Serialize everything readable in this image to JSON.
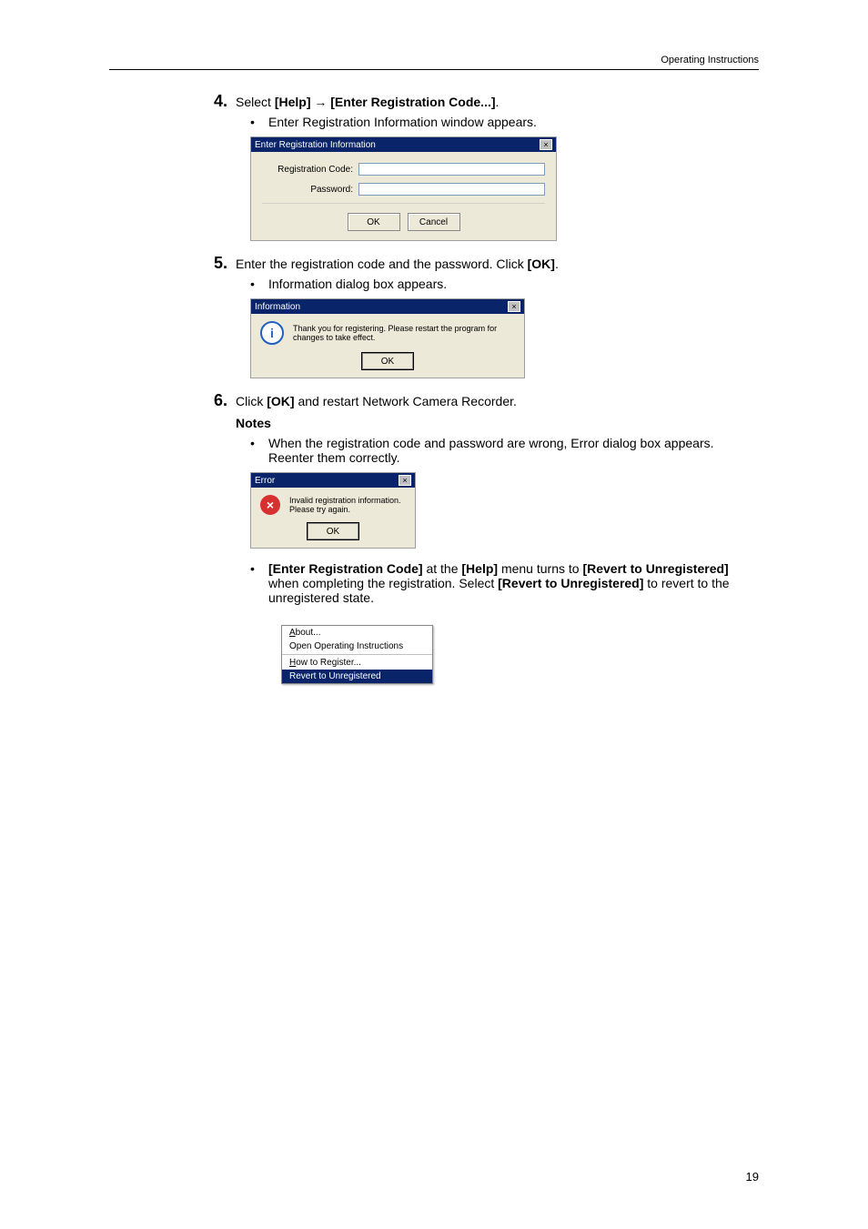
{
  "header": {
    "title": "Operating Instructions"
  },
  "step4": {
    "num": "4.",
    "pre": "Select ",
    "help": "[Help]",
    "arrow": " → ",
    "code": "[Enter Registration Code...]",
    "post": ".",
    "bullet": "Enter Registration Information window appears."
  },
  "dlg_reg": {
    "title": "Enter Registration Information",
    "label_code": "Registration Code:",
    "label_pass": "Password:",
    "btn_ok": "OK",
    "btn_cancel": "Cancel",
    "close_x": "×"
  },
  "step5": {
    "num": "5.",
    "text_pre": "Enter the registration code and the password. Click ",
    "ok": "[OK]",
    "post": ".",
    "bullet": "Information dialog box appears."
  },
  "dlg_info": {
    "title": "Information",
    "icon": "i",
    "text": "Thank you for registering. Please restart the program for changes to take effect.",
    "btn_ok": "OK",
    "close_x": "×"
  },
  "step6": {
    "num": "6.",
    "pre": "Click ",
    "ok": "[OK]",
    "post": " and restart Network Camera Recorder."
  },
  "notes": {
    "heading": "Notes"
  },
  "note1": {
    "text": "When the registration code and password are wrong, Error dialog box appears. Reenter them correctly."
  },
  "dlg_err": {
    "title": "Error",
    "icon": "×",
    "text": "Invalid registration information. Please try again.",
    "btn_ok": "OK",
    "close_x": "×"
  },
  "note2": {
    "p1": "[Enter Registration Code]",
    "p2": " at the ",
    "p3": "[Help]",
    "p4": " menu turns to ",
    "p5": "[Revert to Unregistered]",
    "p6": " when completing the registration. Select ",
    "p7": "[Revert to Unregistered]",
    "p8": " to revert to the unregistered state."
  },
  "menu": {
    "about": "About...",
    "open": "Open Operating Instructions",
    "how": "How to Register...",
    "revert": "Revert to Unregistered"
  },
  "page_number": "19"
}
